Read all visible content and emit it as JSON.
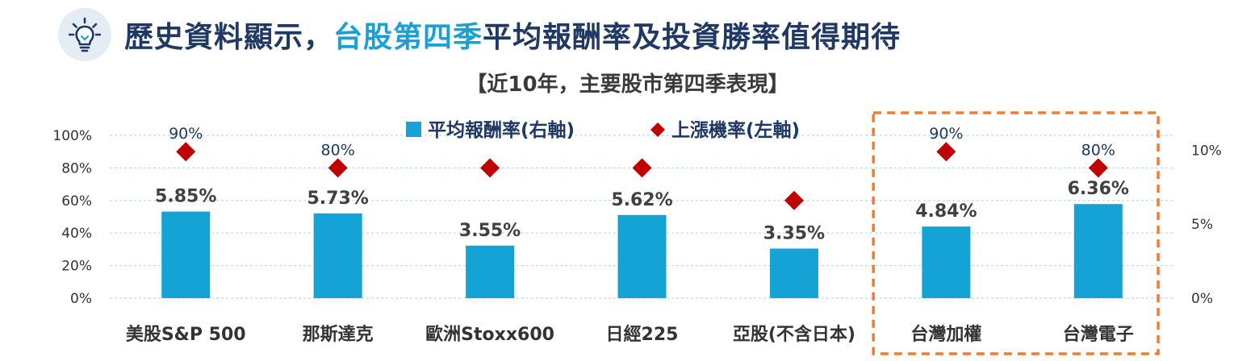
{
  "header": {
    "title_part1": "歷史資料顯示，",
    "title_highlight": "台股第四季",
    "title_part2": "平均報酬率及投資勝率值得期待",
    "icon": "lightbulb-icon"
  },
  "chart_data": {
    "type": "bar",
    "title": "【近10年，主要股市第四季表現】",
    "categories": [
      "美股S&P 500",
      "那斯達克",
      "歐洲Stoxx600",
      "日經225",
      "亞股(不含日本)",
      "台灣加權",
      "台灣電子"
    ],
    "series": [
      {
        "name": "平均報酬率(右軸)",
        "type": "bar",
        "axis": "right",
        "values": [
          5.85,
          5.73,
          3.55,
          5.62,
          3.35,
          4.84,
          6.36
        ],
        "labels": [
          "5.85%",
          "5.73%",
          "3.55%",
          "5.62%",
          "3.35%",
          "4.84%",
          "6.36%"
        ],
        "color": "#15a3d6"
      },
      {
        "name": "上漲機率(左軸)",
        "type": "scatter",
        "axis": "left",
        "values": [
          90,
          80,
          80,
          80,
          60,
          90,
          80
        ],
        "labels": [
          "90%",
          "80%",
          "",
          "",
          "",
          "90%",
          "80%"
        ],
        "color": "#c00000",
        "marker": "diamond"
      }
    ],
    "left_axis": {
      "ticks": [
        "0%",
        "20%",
        "40%",
        "60%",
        "80%",
        "100%"
      ],
      "ylim": [
        0,
        100
      ]
    },
    "right_axis": {
      "ticks": [
        "0%",
        "5%",
        "10%"
      ],
      "ylim": [
        0,
        11
      ]
    },
    "grid": true,
    "legend_position": "top-center",
    "highlighted_categories": [
      "台灣加權",
      "台灣電子"
    ],
    "highlight_color": "#ed7d31"
  }
}
